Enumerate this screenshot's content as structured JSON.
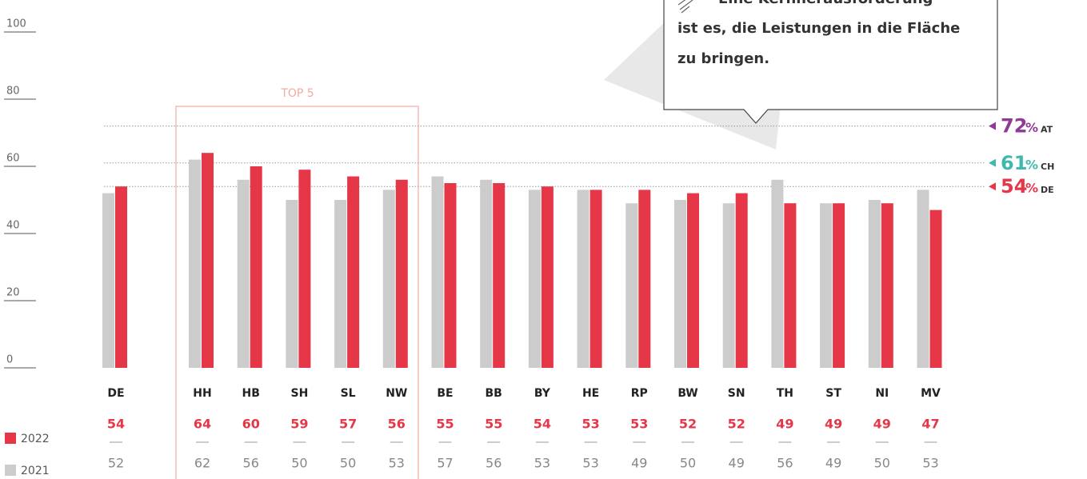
{
  "chart_data": {
    "type": "bar",
    "categories": [
      "DE",
      "HH",
      "HB",
      "SH",
      "SL",
      "NW",
      "BE",
      "BB",
      "BY",
      "HE",
      "RP",
      "BW",
      "SN",
      "TH",
      "ST",
      "NI",
      "MV"
    ],
    "series": [
      {
        "name": "2022",
        "color": "#e63748",
        "values": [
          54,
          64,
          60,
          59,
          57,
          56,
          55,
          55,
          54,
          53,
          53,
          52,
          52,
          49,
          49,
          49,
          47
        ]
      },
      {
        "name": "2021",
        "color": "#cccccc",
        "values": [
          52,
          62,
          56,
          50,
          50,
          53,
          57,
          56,
          53,
          53,
          49,
          50,
          49,
          56,
          49,
          50,
          53
        ]
      }
    ],
    "ylim": [
      0,
      100
    ],
    "yticks": [
      0,
      20,
      40,
      60,
      80,
      100
    ],
    "reference_lines": [
      {
        "value": 72,
        "unit": "%",
        "code": "AT",
        "color": "#8e3a96"
      },
      {
        "value": 61,
        "unit": "%",
        "code": "CH",
        "color": "#3fb8af"
      },
      {
        "value": 54,
        "unit": "%",
        "code": "DE",
        "color": "#e63748"
      }
    ],
    "highlight": {
      "label": "TOP 5"
    },
    "callout": {
      "lines": [
        "Eine Kernherausforderung",
        "ist es, die Leistungen in die Fläche",
        "zu bringen."
      ]
    }
  }
}
